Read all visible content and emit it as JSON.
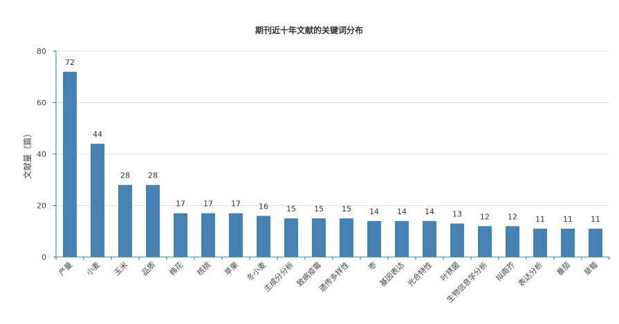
{
  "chart_data": {
    "type": "bar",
    "title": "期刊近十年文献的关键词分布",
    "xlabel": "",
    "ylabel": "文献量（篇）",
    "ylim": [
      0,
      80
    ],
    "yticks": [
      0,
      20,
      40,
      60,
      80
    ],
    "grid": true,
    "bar_color": "#4682b4",
    "axis_color": "#2b8a8a",
    "categories": [
      "产量",
      "小麦",
      "玉米",
      "品质",
      "棉花",
      "核桃",
      "苹果",
      "冬小麦",
      "主成分分析",
      "致病疫霉",
      "遗传多样性",
      "枣",
      "基因表达",
      "光合特性",
      "叶锈菌",
      "生物信息学分析",
      "拟南芥",
      "表达分析",
      "番茄",
      "草莓"
    ],
    "values": [
      72,
      44,
      28,
      28,
      17,
      17,
      17,
      16,
      15,
      15,
      15,
      14,
      14,
      14,
      13,
      12,
      12,
      11,
      11,
      11
    ]
  }
}
